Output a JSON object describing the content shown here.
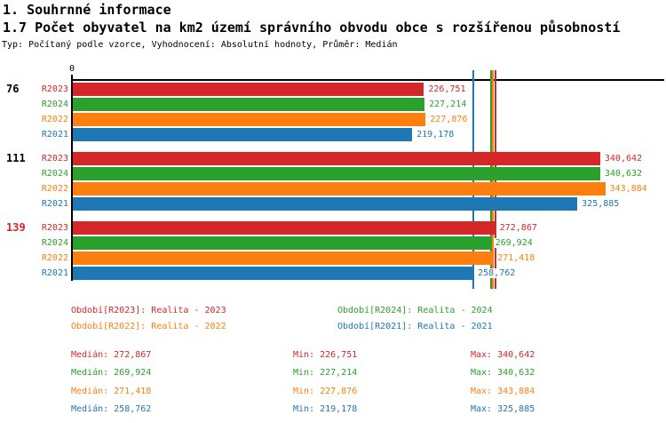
{
  "header": {
    "title": "1. Souhrnné informace",
    "subtitle": "1.7 Počet obyvatel na km2 území správního obvodu obce s rozšířenou působností",
    "meta": "Typ: Počítaný podle vzorce, Vyhodnocení: Absolutní hodnoty, Průměr: Medián"
  },
  "series_colors": {
    "R2023": "#d62728",
    "R2024": "#2ca02c",
    "R2022": "#ff7f0e",
    "R2021": "#1f77b4"
  },
  "chart_data": {
    "type": "bar",
    "orientation": "horizontal",
    "grid": false,
    "x_axis": {
      "origin_label": "0",
      "xlim": [
        0,
        382000
      ]
    },
    "series_order": [
      "R2023",
      "R2024",
      "R2022",
      "R2021"
    ],
    "groups": [
      {
        "label": "76",
        "label_color": "#000000",
        "bars": [
          {
            "series": "R2023",
            "value": 226751,
            "label": "226,751"
          },
          {
            "series": "R2024",
            "value": 227214,
            "label": "227,214"
          },
          {
            "series": "R2022",
            "value": 227876,
            "label": "227,876"
          },
          {
            "series": "R2021",
            "value": 219178,
            "label": "219,178"
          }
        ]
      },
      {
        "label": "111",
        "label_color": "#000000",
        "bars": [
          {
            "series": "R2023",
            "value": 340642,
            "label": "340,642"
          },
          {
            "series": "R2024",
            "value": 340632,
            "label": "340,632"
          },
          {
            "series": "R2022",
            "value": 343884,
            "label": "343,884"
          },
          {
            "series": "R2021",
            "value": 325885,
            "label": "325,885"
          }
        ]
      },
      {
        "label": "139",
        "label_color": "#d62728",
        "bars": [
          {
            "series": "R2023",
            "value": 272867,
            "label": "272,867"
          },
          {
            "series": "R2024",
            "value": 269924,
            "label": "269,924"
          },
          {
            "series": "R2022",
            "value": 271418,
            "label": "271,418"
          },
          {
            "series": "R2021",
            "value": 258762,
            "label": "258,762"
          }
        ]
      }
    ],
    "median_lines": [
      {
        "series": "R2023",
        "value": 272867
      },
      {
        "series": "R2024",
        "value": 269924
      },
      {
        "series": "R2022",
        "value": 271418
      },
      {
        "series": "R2021",
        "value": 258762
      }
    ]
  },
  "legend": {
    "items": [
      {
        "series": "R2023",
        "text": "Období[R2023]: Realita - 2023"
      },
      {
        "series": "R2024",
        "text": "Období[R2024]: Realita - 2024"
      },
      {
        "series": "R2022",
        "text": "Období[R2022]: Realita - 2022"
      },
      {
        "series": "R2021",
        "text": "Období[R2021]: Realita - 2021"
      }
    ]
  },
  "stats": {
    "rows": [
      {
        "series": "R2023",
        "median": "Medián: 272,867",
        "min": "Min: 226,751",
        "max": "Max: 340,642"
      },
      {
        "series": "R2024",
        "median": "Medián: 269,924",
        "min": "Min: 227,214",
        "max": "Max: 340,632"
      },
      {
        "series": "R2022",
        "median": "Medián: 271,418",
        "min": "Min: 227,876",
        "max": "Max: 343,884"
      },
      {
        "series": "R2021",
        "median": "Medián: 258,762",
        "min": "Min: 219,178",
        "max": "Max: 325,885"
      }
    ]
  }
}
